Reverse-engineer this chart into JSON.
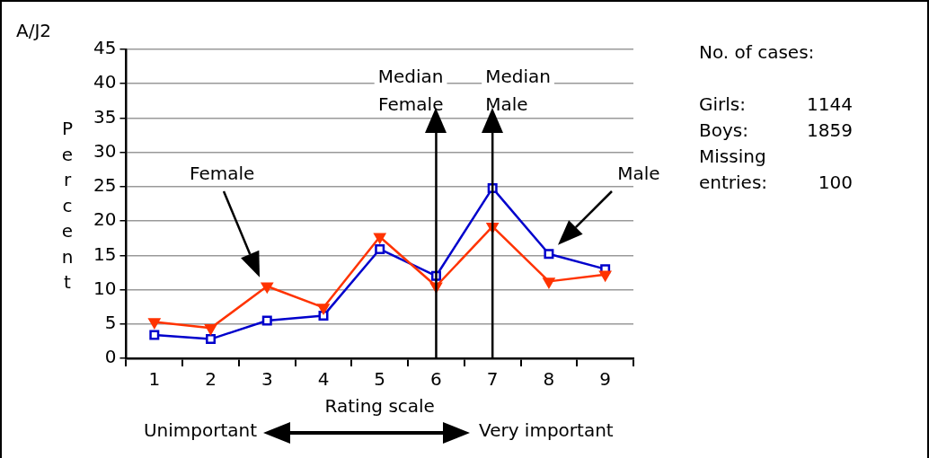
{
  "chart_data": {
    "type": "line",
    "xlabel": "Rating scale",
    "ylabel": "Percent",
    "categories": [
      "1",
      "2",
      "3",
      "4",
      "5",
      "6",
      "7",
      "8",
      "9"
    ],
    "series": [
      {
        "name": "Female",
        "color": "#ff3300",
        "marker": "triangle",
        "values": [
          5.3,
          4.4,
          10.5,
          7.4,
          17.7,
          10.5,
          19.2,
          11.2,
          12.2
        ]
      },
      {
        "name": "Male",
        "color": "#0000cc",
        "marker": "square",
        "values": [
          3.4,
          2.8,
          5.5,
          6.2,
          15.9,
          12.0,
          24.8,
          15.2,
          13.0
        ]
      }
    ],
    "ylim": [
      0,
      45
    ],
    "yticks": [
      0,
      5,
      10,
      15,
      20,
      25,
      30,
      35,
      40,
      45
    ],
    "grid": "y",
    "legend": false,
    "line_style": "solid",
    "ref_lines": [
      {
        "axis": "x",
        "value": "6",
        "label": "Median Female",
        "color": "#000000"
      },
      {
        "axis": "x",
        "value": "7",
        "label": "Median Male",
        "color": "#000000"
      }
    ],
    "annotations": [
      "A/J2",
      "No. of cases:",
      "Girls:",
      "1144",
      "Boys:",
      "1859",
      "Missing entries:",
      "100",
      "Unimportant",
      "Very important"
    ]
  }
}
